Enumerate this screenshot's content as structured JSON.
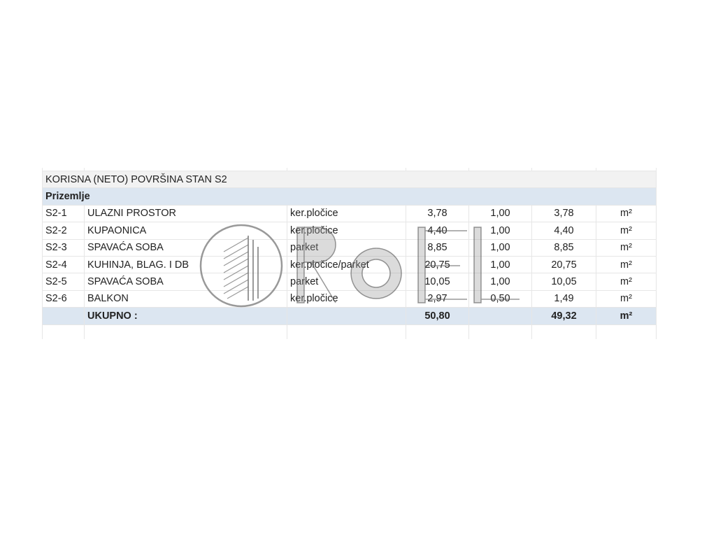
{
  "title": "KORISNA (NETO) POVRŠINA STAN S2",
  "section": "Prizemlje",
  "rows": [
    {
      "id": "S2-1",
      "room": "ULAZNI PROSTOR",
      "floor": "ker.pločice",
      "area": "3,78",
      "coef": "1,00",
      "net": "3,78",
      "unit": "m²"
    },
    {
      "id": "S2-2",
      "room": "KUPAONICA",
      "floor": "ker.pločice",
      "area": "4,40",
      "coef": "1,00",
      "net": "4,40",
      "unit": "m²"
    },
    {
      "id": "S2-3",
      "room": "SPAVAĆA SOBA",
      "floor": "parket",
      "area": "8,85",
      "coef": "1,00",
      "net": "8,85",
      "unit": "m²"
    },
    {
      "id": "S2-4",
      "room": "KUHINJA, BLAG. I DB",
      "floor": "ker.pločice/parket",
      "area": "20,75",
      "coef": "1,00",
      "net": "20,75",
      "unit": "m²"
    },
    {
      "id": "S2-5",
      "room": "SPAVAĆA SOBA",
      "floor": "parket",
      "area": "10,05",
      "coef": "1,00",
      "net": "10,05",
      "unit": "m²"
    },
    {
      "id": "S2-6",
      "room": "BALKON",
      "floor": "ker.pločice",
      "area": "2,97",
      "coef": "0,50",
      "net": "1,49",
      "unit": "m²"
    }
  ],
  "total": {
    "label": "UKUPNO :",
    "area": "50,80",
    "net": "49,32",
    "unit": "m²"
  },
  "watermark": "ROEL",
  "colors": {
    "header_fill": "#dce6f1",
    "title_fill": "#f2f2f2"
  }
}
